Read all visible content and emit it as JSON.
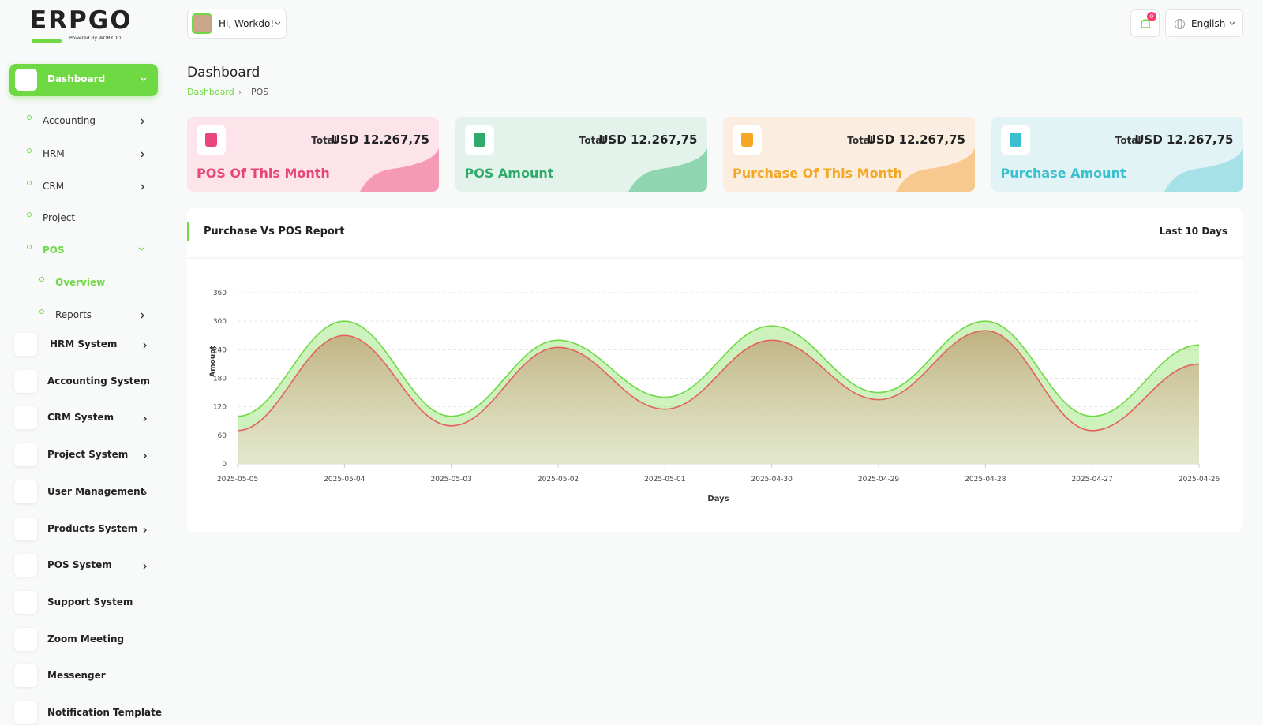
{
  "sidebar": {
    "brand": "ERPGO",
    "tagline": "Powered By WORKDO",
    "items": [
      "Dashboard",
      "Accounting",
      "HRM",
      "CRM",
      "Project",
      "POS",
      "Overview",
      "Reports",
      "HRM System",
      "Accounting System",
      "CRM System",
      "Project System",
      "User Management",
      "Products System",
      "POS System",
      "Support System",
      "Zoom Meeting",
      "Messenger",
      "Notification Template"
    ]
  },
  "header": {
    "greeting": "Hi, Workdo!",
    "notification_count": "0",
    "language": "English"
  },
  "page": {
    "title": "Dashboard",
    "breadcrumb": [
      "Dashboard",
      "POS"
    ]
  },
  "cards": [
    {
      "total_label": "Total :",
      "amount": "USD 12.267,75",
      "title": "POS Of This Month"
    },
    {
      "total_label": "Total :",
      "amount": "USD 12.267,75",
      "title": "POS Amount"
    },
    {
      "total_label": "Total :",
      "amount": "USD 12.267,75",
      "title": "Purchase Of This Month"
    },
    {
      "total_label": "Total :",
      "amount": "USD 12.267,75",
      "title": "Purchase Amount"
    }
  ],
  "chart_data": {
    "type": "area",
    "title": "Purchase Vs POS Report",
    "period": "Last 10 Days",
    "x_label": "Days",
    "y_label": "Amount",
    "categories": [
      "2025-05-05",
      "2025-05-04",
      "2025-05-03",
      "2025-05-02",
      "2025-05-01",
      "2025-04-30",
      "2025-04-29",
      "2025-04-28",
      "2025-04-27",
      "2025-04-26"
    ],
    "series": [
      {
        "color": "#6fd943",
        "values": [
          100,
          300,
          100,
          260,
          140,
          290,
          150,
          300,
          100,
          250
        ]
      },
      {
        "color": "#e4615d",
        "values": [
          70,
          270,
          80,
          245,
          115,
          260,
          135,
          280,
          70,
          210
        ]
      }
    ],
    "ylim": [
      0,
      360
    ],
    "yticks": [
      0,
      60,
      120,
      180,
      240,
      300,
      360
    ],
    "grid": true
  }
}
